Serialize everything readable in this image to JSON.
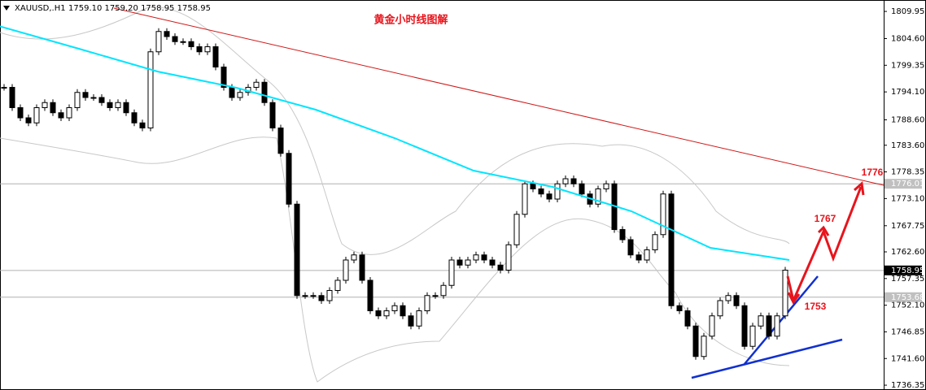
{
  "header": {
    "symbol": "XAUUSD,.H1",
    "quote": "1759.10 1759.20 1758.95 1758.95"
  },
  "chart_data": {
    "type": "candlestick",
    "title": "黄金小时线图解",
    "color": "#000000",
    "values": [
      1795,
      1791,
      1789,
      1788,
      1791,
      1792,
      1790,
      1789,
      1791,
      1794,
      1793,
      1793,
      1792,
      1791,
      1792,
      1790,
      1788,
      1787,
      1802,
      1806,
      1805,
      1804,
      1804,
      1803,
      1802,
      1803,
      1799,
      1795,
      1793,
      1794,
      1795,
      1796,
      1792,
      1787,
      1782,
      1772,
      1754,
      1754,
      1754,
      1753,
      1755,
      1757,
      1761,
      1762,
      1757,
      1751,
      1750,
      1751,
      1752,
      1750,
      1748,
      1751,
      1754,
      1754,
      1756,
      1761,
      1760,
      1761,
      1762,
      1761,
      1760,
      1759,
      1764,
      1770,
      1776,
      1775,
      1774,
      1773,
      1776,
      1777,
      1776,
      1774,
      1772,
      1775,
      1776,
      1767,
      1765,
      1762,
      1761,
      1763,
      1766,
      1774,
      1752,
      1751,
      1748,
      1742,
      1746,
      1750,
      1753,
      1754,
      1752,
      1744,
      1748,
      1750,
      1746,
      1750,
      1759
    ],
    "moving_average": {
      "color": "#00e5ff",
      "values": [
        1807,
        1802.6,
        1798.1,
        1794.9,
        1790.6,
        1785,
        1778.6,
        1775.4,
        1770.6,
        1763.4,
        1761
      ]
    },
    "ylim": [
      1735.4,
      1812.2
    ],
    "yticks": [
      1809.95,
      {
        "value": 1804.6,
        "label": "1804.60"
      },
      1799.35,
      {
        "value": 1794.1,
        "label": "1794.10"
      },
      {
        "value": 1788.6,
        "label": "1788.60"
      },
      {
        "value": 1783.6,
        "label": "1783.60"
      },
      1778.35,
      {
        "value": 1773.1,
        "label": "1773.10"
      },
      1767.75,
      {
        "value": 1762.6,
        "label": "1762.60"
      },
      1757.35,
      {
        "value": 1752.1,
        "label": "1752.10"
      },
      1746.85,
      {
        "value": 1741.6,
        "label": "1741.60"
      },
      1736.35
    ],
    "price_lines": [
      1776.01,
      1758.95,
      1753.68
    ],
    "annotations": [
      "1776",
      "1767",
      "1753"
    ]
  }
}
